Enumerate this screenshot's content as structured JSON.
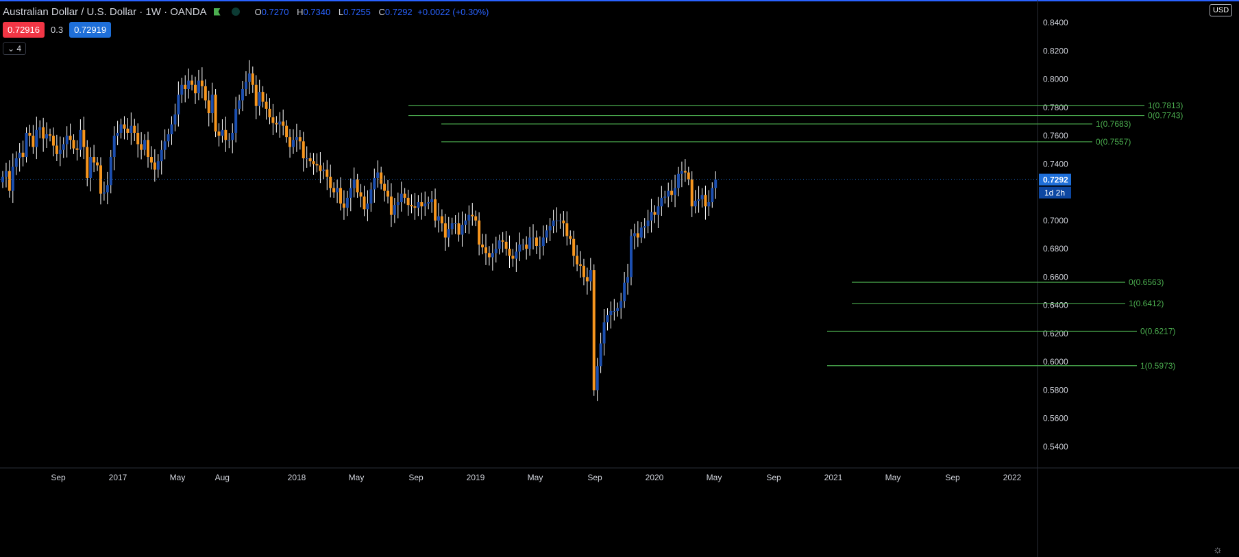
{
  "header": {
    "title": "Australian Dollar / U.S. Dollar · 1W · OANDA",
    "ohlc": [
      {
        "key": "O",
        "value": "0.7270"
      },
      {
        "key": "H",
        "value": "0.7340"
      },
      {
        "key": "L",
        "value": "0.7255"
      },
      {
        "key": "C",
        "value": "0.7292"
      },
      {
        "key": "",
        "value": "+0.0022 (+0.30%)"
      }
    ],
    "icons": [
      "flag-icon",
      "market-open-icon"
    ]
  },
  "trade": {
    "sell": "0.72916",
    "spread": "0.3",
    "buy": "0.72919"
  },
  "indicators_toggle": "4",
  "currency": "USD",
  "colors": {
    "up": "#1c4fb0",
    "down": "#f7961e",
    "wick": "#ffffff",
    "fib": "#4caf50",
    "price_label": "#1e6fd9",
    "sell": "#f23645",
    "buy": "#1e6fd9",
    "bg": "#000000",
    "accent": "#2962ff",
    "change": "#2962ff"
  },
  "chart_data": {
    "type": "candlestick",
    "symbol": "AUDUSD",
    "interval": "1W",
    "ylim": [
      0.53,
      0.845
    ],
    "y_ticks": [
      "0.8400",
      "0.8200",
      "0.8000",
      "0.7800",
      "0.7600",
      "0.7400",
      "0.7200",
      "0.7000",
      "0.6800",
      "0.6600",
      "0.6400",
      "0.6200",
      "0.6000",
      "0.5800",
      "0.5600",
      "0.5400"
    ],
    "x_ticks": [
      {
        "label": "Sep",
        "date": "2016-09"
      },
      {
        "label": "2017",
        "date": "2017-01"
      },
      {
        "label": "May",
        "date": "2017-05"
      },
      {
        "label": "Aug",
        "date": "2017-08"
      },
      {
        "label": "2018",
        "date": "2018-01"
      },
      {
        "label": "May",
        "date": "2018-05"
      },
      {
        "label": "Sep",
        "date": "2018-09"
      },
      {
        "label": "2019",
        "date": "2019-01"
      },
      {
        "label": "May",
        "date": "2019-05"
      },
      {
        "label": "Sep",
        "date": "2019-09"
      },
      {
        "label": "2020",
        "date": "2020-01"
      },
      {
        "label": "May",
        "date": "2020-05"
      },
      {
        "label": "Sep",
        "date": "2020-09"
      },
      {
        "label": "2021",
        "date": "2021-01"
      },
      {
        "label": "May",
        "date": "2021-05"
      },
      {
        "label": "Sep",
        "date": "2021-09"
      },
      {
        "label": "2022",
        "date": "2022-01"
      }
    ],
    "last_price": "0.7292",
    "countdown": "1d 2h",
    "closes": [
      0.731,
      0.735,
      0.721,
      0.738,
      0.744,
      0.748,
      0.745,
      0.762,
      0.76,
      0.752,
      0.764,
      0.766,
      0.758,
      0.761,
      0.76,
      0.753,
      0.747,
      0.75,
      0.754,
      0.76,
      0.757,
      0.751,
      0.75,
      0.764,
      0.752,
      0.73,
      0.745,
      0.741,
      0.739,
      0.719,
      0.72,
      0.725,
      0.745,
      0.76,
      0.762,
      0.768,
      0.765,
      0.762,
      0.767,
      0.762,
      0.754,
      0.75,
      0.757,
      0.745,
      0.741,
      0.736,
      0.742,
      0.75,
      0.756,
      0.761,
      0.768,
      0.775,
      0.789,
      0.796,
      0.793,
      0.799,
      0.796,
      0.79,
      0.799,
      0.795,
      0.785,
      0.776,
      0.789,
      0.763,
      0.76,
      0.764,
      0.757,
      0.757,
      0.762,
      0.779,
      0.785,
      0.793,
      0.798,
      0.804,
      0.796,
      0.781,
      0.791,
      0.784,
      0.779,
      0.773,
      0.769,
      0.768,
      0.77,
      0.767,
      0.759,
      0.752,
      0.757,
      0.759,
      0.756,
      0.744,
      0.744,
      0.742,
      0.74,
      0.739,
      0.735,
      0.736,
      0.731,
      0.723,
      0.72,
      0.723,
      0.712,
      0.709,
      0.716,
      0.723,
      0.729,
      0.72,
      0.717,
      0.708,
      0.712,
      0.722,
      0.73,
      0.734,
      0.726,
      0.721,
      0.717,
      0.704,
      0.711,
      0.713,
      0.719,
      0.716,
      0.711,
      0.71,
      0.709,
      0.713,
      0.71,
      0.712,
      0.713,
      0.715,
      0.7,
      0.703,
      0.698,
      0.688,
      0.694,
      0.698,
      0.698,
      0.69,
      0.697,
      0.7,
      0.704,
      0.703,
      0.7,
      0.683,
      0.681,
      0.677,
      0.674,
      0.677,
      0.68,
      0.686,
      0.685,
      0.68,
      0.675,
      0.673,
      0.678,
      0.683,
      0.683,
      0.68,
      0.688,
      0.688,
      0.682,
      0.682,
      0.688,
      0.693,
      0.696,
      0.7,
      0.7,
      0.7,
      0.698,
      0.689,
      0.687,
      0.675,
      0.669,
      0.668,
      0.66,
      0.657,
      0.665,
      0.58,
      0.597,
      0.613,
      0.628,
      0.633,
      0.636,
      0.636,
      0.638,
      0.643,
      0.656,
      0.66,
      0.689,
      0.691,
      0.688,
      0.695,
      0.696,
      0.7,
      0.706,
      0.704,
      0.71,
      0.716,
      0.717,
      0.721,
      0.718,
      0.723,
      0.733,
      0.735,
      0.734,
      0.729,
      0.71,
      0.714,
      0.715,
      0.718,
      0.71,
      0.713,
      0.723,
      0.729
    ],
    "fibonacci_levels": [
      {
        "label": "1(0.7813)",
        "value": 0.7813
      },
      {
        "label": "0(0.7743)",
        "value": 0.7743
      },
      {
        "label": "1(0.7683)",
        "value": 0.7683
      },
      {
        "label": "0(0.7557)",
        "value": 0.7557
      },
      {
        "label": "0(0.6563)",
        "value": 0.6563
      },
      {
        "label": "1(0.6412)",
        "value": 0.6412
      },
      {
        "label": "0(0.6217)",
        "value": 0.6217
      },
      {
        "label": "1(0.5973)",
        "value": 0.5973
      }
    ]
  }
}
